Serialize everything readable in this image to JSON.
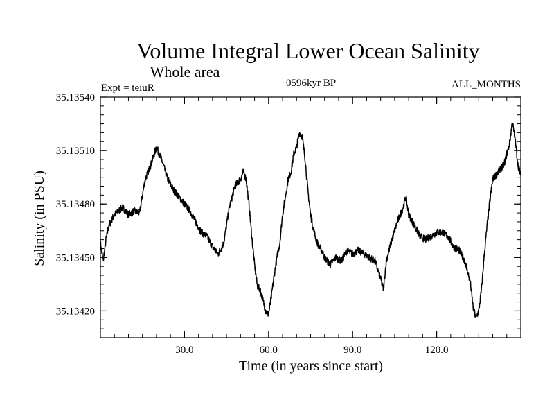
{
  "chart_data": {
    "type": "line",
    "title": "Volume Integral Lower Ocean Salinity",
    "subtitle": "Whole area",
    "experiment_label": "Expt = teiuR",
    "period_label": "0596kyr BP",
    "months_label": "ALL_MONTHS",
    "xlabel": "Time (in years since start)",
    "ylabel": "Salinity (in PSU)",
    "xlim": [
      0,
      150
    ],
    "ylim": [
      35.13405,
      35.1354
    ],
    "x_ticks": [
      30,
      60,
      90,
      120
    ],
    "x_tick_labels": [
      "30.0",
      "60.0",
      "90.0",
      "120.0"
    ],
    "y_ticks": [
      35.1342,
      35.1345,
      35.1348,
      35.1351,
      35.1354
    ],
    "y_tick_labels": [
      "35.13420",
      "35.13450",
      "35.13480",
      "35.13510",
      "35.13540"
    ],
    "grid": false,
    "noise_amplitude": 2e-05,
    "series": [
      {
        "name": "salinity",
        "color": "#000000",
        "x": [
          0,
          1,
          2,
          3,
          5,
          8,
          10,
          12,
          14,
          15,
          16,
          18,
          20,
          22,
          24,
          26,
          28,
          30,
          32,
          34,
          36,
          38,
          40,
          42,
          44,
          46,
          48,
          50,
          51,
          52,
          53,
          54,
          55,
          56,
          57,
          58,
          59,
          60,
          61,
          62,
          63,
          64,
          65,
          66,
          67,
          68,
          69,
          70,
          71,
          72,
          73,
          74,
          75,
          76,
          77,
          78,
          79,
          80,
          82,
          84,
          86,
          88,
          90,
          92,
          94,
          96,
          98,
          100,
          101,
          102,
          104,
          106,
          108,
          109,
          110,
          112,
          114,
          116,
          118,
          120,
          122,
          124,
          126,
          128,
          130,
          132,
          133,
          134,
          135,
          136,
          137,
          138,
          139,
          140,
          142,
          144,
          146,
          147,
          148,
          149,
          150
        ],
        "values": [
          35.13458,
          35.13448,
          35.1346,
          35.13468,
          35.13474,
          35.13478,
          35.13474,
          35.13476,
          35.13475,
          35.13485,
          35.13494,
          35.13502,
          35.13512,
          35.13504,
          35.13494,
          35.13488,
          35.13484,
          35.1348,
          35.13476,
          35.1347,
          35.13464,
          35.13462,
          35.13456,
          35.13452,
          35.13458,
          35.13478,
          35.1349,
          35.13494,
          35.13498,
          35.13494,
          35.1348,
          35.13462,
          35.13446,
          35.13434,
          35.13432,
          35.13426,
          35.1342,
          35.13418,
          35.13428,
          35.1344,
          35.1345,
          35.13458,
          35.13474,
          35.13484,
          35.13494,
          35.13498,
          35.13508,
          35.13512,
          35.1352,
          35.13518,
          35.13506,
          35.13488,
          35.13474,
          35.13466,
          35.1346,
          35.13456,
          35.13454,
          35.1345,
          35.13446,
          35.1345,
          35.13448,
          35.13454,
          35.13452,
          35.13454,
          35.13452,
          35.1345,
          35.13448,
          35.13438,
          35.13432,
          35.13448,
          35.1346,
          35.1347,
          35.13478,
          35.13484,
          35.13474,
          35.13468,
          35.13462,
          35.1346,
          35.13462,
          35.13464,
          35.13464,
          35.13462,
          35.13456,
          35.13454,
          35.13448,
          35.13436,
          35.13422,
          35.13416,
          35.1342,
          35.13432,
          35.13452,
          35.13468,
          35.13482,
          35.13494,
          35.13498,
          35.13502,
          35.13514,
          35.13526,
          35.13516,
          35.13502,
          35.13496
        ]
      }
    ]
  }
}
